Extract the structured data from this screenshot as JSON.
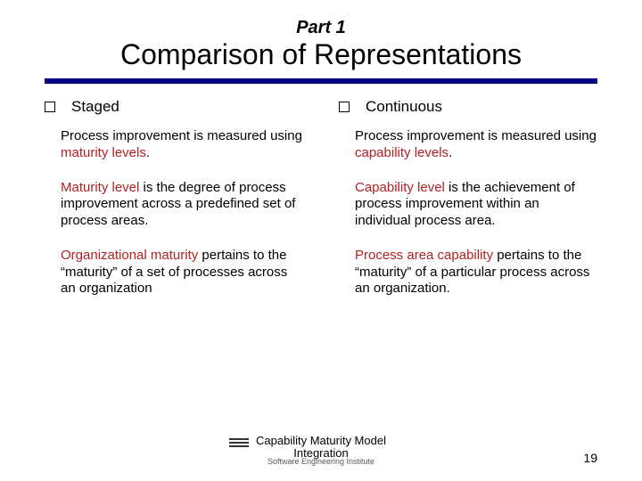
{
  "partLabel": "Part 1",
  "title": "Comparison of Representations",
  "ruleColor": "#000080",
  "highlightColor": "#b22222",
  "left": {
    "heading": "Staged",
    "p1": {
      "pre": "Process improvement is measured using ",
      "hl": "maturity levels",
      "post": "."
    },
    "p2": {
      "pre": "",
      "hl": "Maturity level",
      "post": " is the degree of process improvement across a predefined set of process areas."
    },
    "p3": {
      "pre": "",
      "hl": "Organizational maturity",
      "post": " pertains to the “maturity” of a set of processes across an organization"
    }
  },
  "right": {
    "heading": "Continuous",
    "p1": {
      "pre": "Process improvement is measured using ",
      "hl": "capability levels",
      "post": "."
    },
    "p2": {
      "pre": "",
      "hl": "Capability level",
      "post": " is the achievement of process improvement within an individual process area."
    },
    "p3": {
      "pre": "",
      "hl": "Process area capability",
      "post": " pertains to the “maturity” of a particular process across an organization."
    }
  },
  "footer": {
    "line1": "Capability Maturity Model",
    "line2": "Integration",
    "sub": "Software Engineering Institute"
  },
  "pageNumber": "19",
  "fonts": {
    "titleSize": 32,
    "partSize": 20,
    "bodySize": 15,
    "headSize": 17
  }
}
